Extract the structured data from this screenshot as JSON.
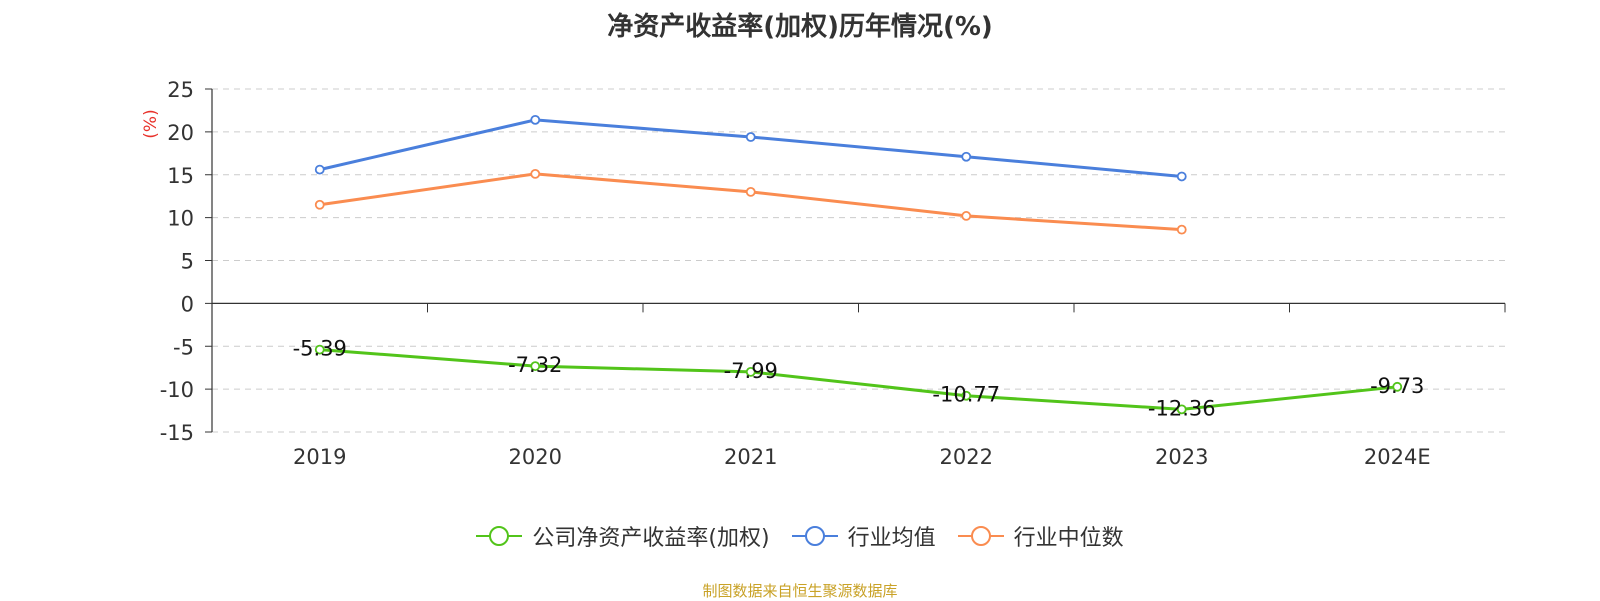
{
  "chart_data": {
    "type": "line",
    "title": "净资产收益率(加权)历年情况(%)",
    "ylabel": "(%)",
    "xlabel": "",
    "categories": [
      "2019",
      "2020",
      "2021",
      "2022",
      "2023",
      "2024E"
    ],
    "ylim": [
      -15,
      25
    ],
    "yticks": [
      25,
      20,
      15,
      10,
      5,
      0,
      -5,
      -10,
      -15
    ],
    "grid": true,
    "legend_position": "bottom",
    "series": [
      {
        "name": "公司净资产收益率(加权)",
        "color": "#52c41a",
        "values": [
          -5.39,
          -7.32,
          -7.99,
          -10.77,
          -12.36,
          -9.73
        ],
        "labels": [
          "-5.39",
          "-7.32",
          "-7.99",
          "-10.77",
          "-12.36",
          "-9.73"
        ],
        "show_labels": true
      },
      {
        "name": "行业均值",
        "color": "#4a7fdc",
        "values": [
          15.6,
          21.4,
          19.4,
          17.1,
          14.8,
          null
        ],
        "show_labels": false
      },
      {
        "name": "行业中位数",
        "color": "#fa8c50",
        "values": [
          11.5,
          15.1,
          13.0,
          10.2,
          8.6,
          null
        ],
        "show_labels": false
      }
    ]
  },
  "footer": {
    "source": "制图数据来自恒生聚源数据库"
  }
}
